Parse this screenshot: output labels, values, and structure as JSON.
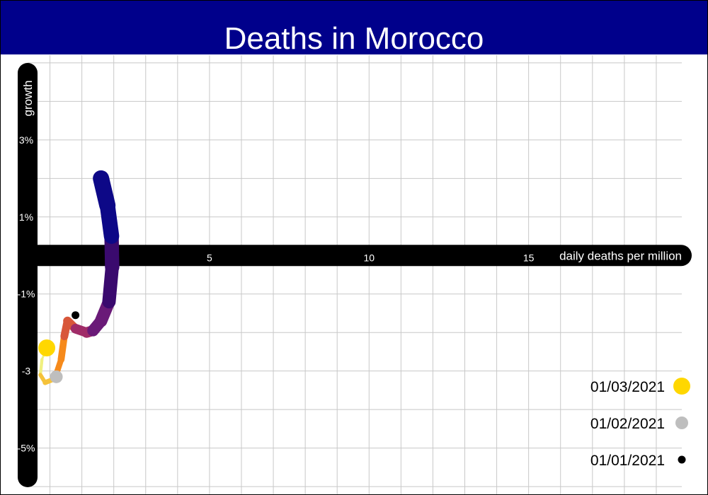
{
  "colors": {
    "title_background": "#00008b",
    "title_text": "#ffffff",
    "axis_band": "#000000",
    "grid": "#c8c8c8",
    "marker_01_03_2021": "#ffd700",
    "marker_01_02_2021": "#bebebe",
    "marker_01_01_2021": "#000000",
    "trail_palette": [
      "#0d0887",
      "#3a0a6e",
      "#6a1a78",
      "#a02c68",
      "#d8573a",
      "#f68a1b",
      "#f5c23a",
      "#f0f080"
    ]
  },
  "chart_data": {
    "type": "line",
    "title": "Deaths in Morocco",
    "xlabel": "daily deaths per million",
    "ylabel": "growth",
    "xlim": [
      -0.7,
      19.8
    ],
    "ylim": [
      -6.2,
      5.2
    ],
    "x_ticks": [
      {
        "value": 5,
        "label": "5"
      },
      {
        "value": 10,
        "label": "10"
      },
      {
        "value": 15,
        "label": "15"
      }
    ],
    "y_ticks": [
      {
        "value": 3,
        "label": "3%"
      },
      {
        "value": 1,
        "label": "1%"
      },
      {
        "value": -1,
        "label": "-1%"
      },
      {
        "value": -3,
        "label": "-3"
      },
      {
        "value": -5,
        "label": "-5%"
      }
    ],
    "grid": true,
    "legend_position": "bottom-right",
    "series": [
      {
        "values": [
          {
            "x": 1.6,
            "y": 2.0
          },
          {
            "x": 1.8,
            "y": 1.3
          },
          {
            "x": 1.93,
            "y": 0.5
          },
          {
            "x": 1.95,
            "y": -0.3
          },
          {
            "x": 1.85,
            "y": -1.2
          },
          {
            "x": 1.6,
            "y": -1.7
          },
          {
            "x": 1.35,
            "y": -1.95
          },
          {
            "x": 1.15,
            "y": -2.0
          },
          {
            "x": 0.8,
            "y": -1.9
          },
          {
            "x": 0.55,
            "y": -1.7
          },
          {
            "x": 0.45,
            "y": -2.1
          },
          {
            "x": 0.35,
            "y": -2.7
          },
          {
            "x": 0.15,
            "y": -3.2
          },
          {
            "x": -0.15,
            "y": -3.3
          },
          {
            "x": -0.3,
            "y": -3.1
          },
          {
            "x": -0.25,
            "y": -2.7
          },
          {
            "x": -0.1,
            "y": -2.4
          }
        ]
      }
    ],
    "markers": [
      {
        "date": "01/03/2021",
        "x": -0.1,
        "y": -2.4,
        "color": "#ffd700",
        "size": "large"
      },
      {
        "date": "01/02/2021",
        "x": 0.2,
        "y": -3.15,
        "color": "#bebebe",
        "size": "medium"
      },
      {
        "date": "01/01/2021",
        "x": 0.8,
        "y": -1.55,
        "color": "#000000",
        "size": "small"
      }
    ],
    "legend": [
      {
        "label": "01/03/2021",
        "color": "#ffd700",
        "size": "large"
      },
      {
        "label": "01/02/2021",
        "color": "#bebebe",
        "size": "medium"
      },
      {
        "label": "01/01/2021",
        "color": "#000000",
        "size": "small"
      }
    ]
  }
}
